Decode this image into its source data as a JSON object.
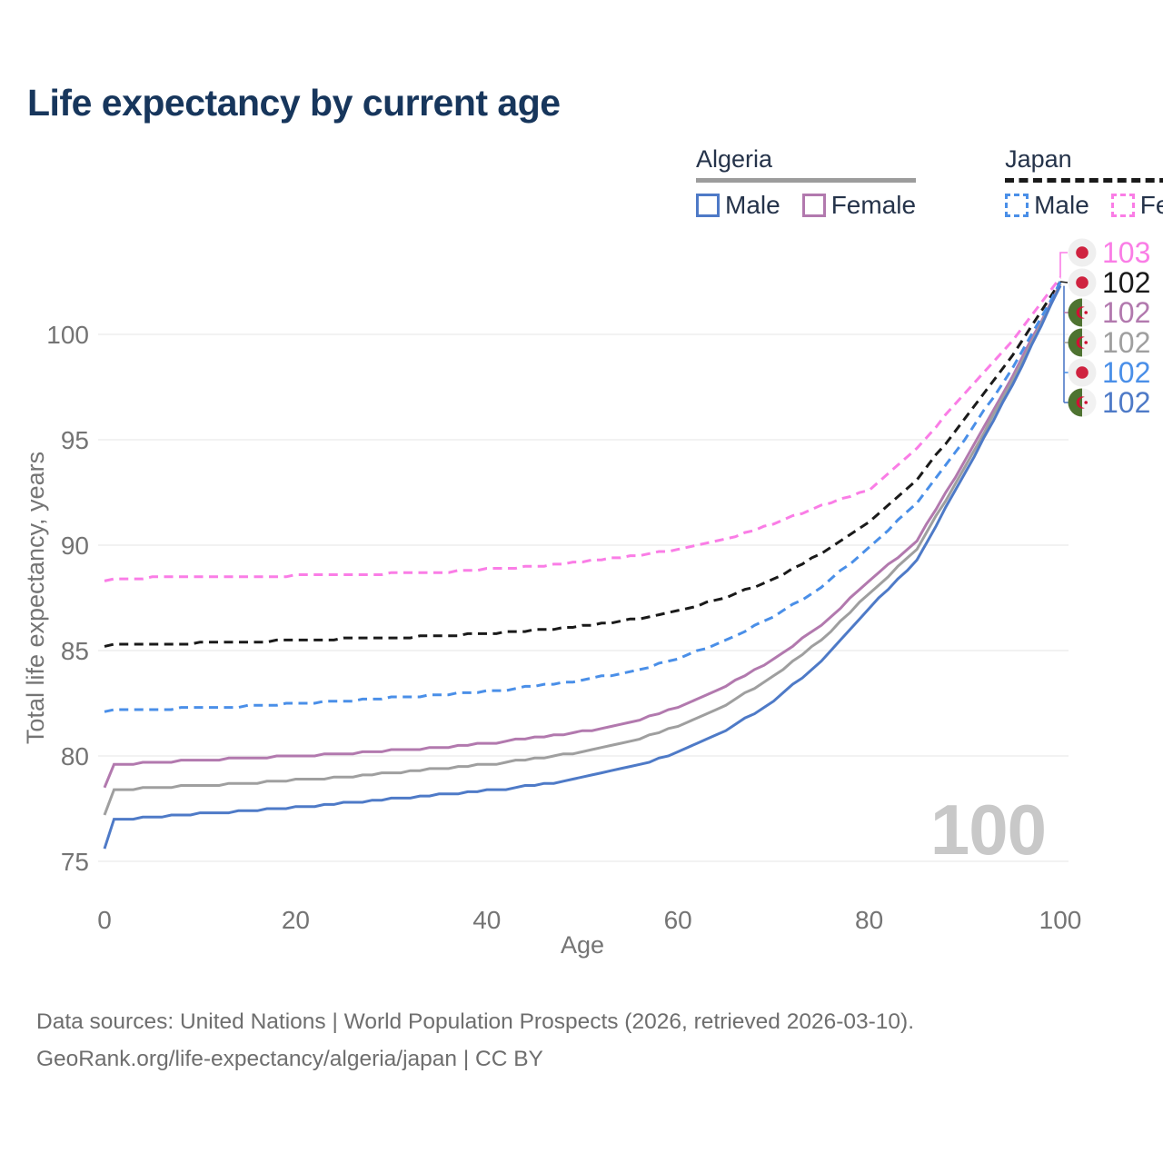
{
  "page": {
    "title": "Life expectancy by current age",
    "title_color": "#17365c",
    "background": "#ffffff"
  },
  "legend": {
    "groups": [
      {
        "label": "Algeria",
        "line_style": "solid",
        "line_color": "#9c9c9c",
        "items": [
          {
            "label": "Male",
            "series": "algeria-male"
          },
          {
            "label": "Female",
            "series": "algeria-female"
          }
        ]
      },
      {
        "label": "Japan",
        "line_style": "dashed",
        "line_color": "#1a1a1a",
        "items": [
          {
            "label": "Male",
            "series": "japan-male"
          },
          {
            "label": "Female",
            "series": "japan-female"
          }
        ]
      }
    ]
  },
  "chart_data": {
    "type": "line",
    "title": "Life expectancy by current age",
    "xlabel": "Age",
    "ylabel": "Total life expectancy, years",
    "xlim": [
      0,
      100
    ],
    "ylim": [
      74.5,
      103.5
    ],
    "x_ticks": [
      0,
      20,
      40,
      60,
      80,
      100
    ],
    "y_ticks": [
      75,
      80,
      85,
      90,
      95,
      100
    ],
    "grid": "horizontal",
    "legend_position": "top-right",
    "ages": [
      0,
      1,
      5,
      10,
      15,
      20,
      25,
      30,
      35,
      40,
      45,
      50,
      55,
      60,
      65,
      70,
      75,
      80,
      85,
      90,
      95,
      100
    ],
    "series": [
      {
        "id": "japan-female",
        "country": "Japan",
        "sex": "Female",
        "color": "#fa7de6",
        "dash": true,
        "flag": "japan",
        "end_label": "103",
        "values": [
          88.3,
          88.35,
          88.45,
          88.5,
          88.5,
          88.55,
          88.6,
          88.65,
          88.7,
          88.85,
          89.0,
          89.2,
          89.45,
          89.8,
          90.3,
          91.0,
          91.9,
          92.6,
          94.6,
          97.2,
          99.7,
          102.7
        ]
      },
      {
        "id": "japan-total",
        "country": "Japan",
        "sex": "Both",
        "color": "#1a1a1a",
        "dash": true,
        "flag": "japan",
        "end_label": "102",
        "values": [
          85.2,
          85.25,
          85.3,
          85.35,
          85.4,
          85.5,
          85.55,
          85.6,
          85.7,
          85.8,
          85.95,
          86.15,
          86.45,
          86.9,
          87.5,
          88.4,
          89.6,
          91.1,
          93.1,
          96.0,
          99.0,
          102.5
        ]
      },
      {
        "id": "algeria-female",
        "country": "Algeria",
        "sex": "Female",
        "color": "#b279ae",
        "dash": false,
        "flag": "algeria",
        "end_label": "102",
        "values": [
          78.5,
          79.55,
          79.7,
          79.8,
          79.9,
          80.0,
          80.1,
          80.25,
          80.4,
          80.6,
          80.85,
          81.15,
          81.6,
          82.3,
          83.3,
          84.6,
          86.2,
          88.3,
          90.2,
          94.0,
          98.0,
          102.4
        ]
      },
      {
        "id": "algeria-total",
        "country": "Algeria",
        "sex": "Both",
        "color": "#9f9f9f",
        "dash": false,
        "flag": "algeria",
        "end_label": "102",
        "values": [
          77.2,
          78.35,
          78.5,
          78.6,
          78.7,
          78.85,
          79.0,
          79.2,
          79.4,
          79.6,
          79.85,
          80.2,
          80.7,
          81.4,
          82.4,
          83.8,
          85.5,
          87.7,
          89.8,
          93.7,
          97.8,
          102.35
        ]
      },
      {
        "id": "japan-male",
        "country": "Japan",
        "sex": "Male",
        "color": "#4a8fe8",
        "dash": true,
        "flag": "japan",
        "end_label": "102",
        "values": [
          82.1,
          82.15,
          82.2,
          82.3,
          82.35,
          82.5,
          82.6,
          82.75,
          82.9,
          83.05,
          83.3,
          83.6,
          84.0,
          84.6,
          85.5,
          86.6,
          88.0,
          89.9,
          92.0,
          95.0,
          98.4,
          102.45
        ]
      },
      {
        "id": "algeria-male",
        "country": "Algeria",
        "sex": "Male",
        "color": "#4e7ac7",
        "dash": false,
        "flag": "algeria",
        "end_label": "102",
        "values": [
          75.6,
          76.95,
          77.1,
          77.25,
          77.4,
          77.55,
          77.75,
          77.95,
          78.15,
          78.35,
          78.6,
          78.95,
          79.45,
          80.15,
          81.2,
          82.6,
          84.5,
          87.0,
          89.3,
          93.4,
          97.6,
          102.3
        ]
      }
    ],
    "flag_colors": {
      "japan_bg": "#efefef",
      "japan_dot": "#cf2340",
      "algeria_green": "#4e7331",
      "algeria_white": "#f2f2f2",
      "algeria_red": "#d21034"
    },
    "text_colors": {
      "axis": "#747474",
      "grid": "#e9e9e9"
    }
  },
  "age_counter": "100",
  "footer": {
    "line1": "Data sources: United Nations | World Population Prospects (2026, retrieved 2026-03-10).",
    "line2": "GeoRank.org/life-expectancy/algeria/japan | CC BY"
  }
}
